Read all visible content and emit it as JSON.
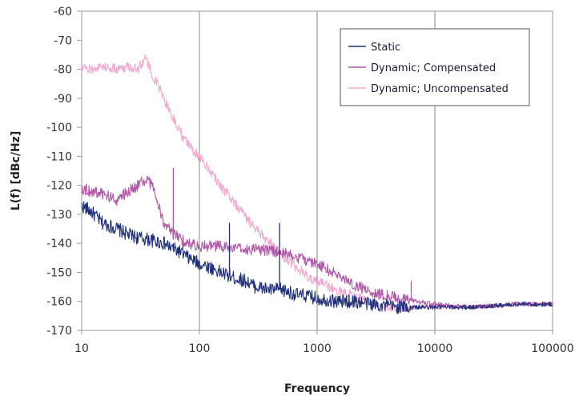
{
  "chart_data": {
    "type": "line",
    "xlabel": "Frequency",
    "ylabel": "L(f) [dBc/Hz]",
    "x_scale": "log",
    "xlim": [
      10,
      100000
    ],
    "ylim": [
      -170,
      -60
    ],
    "x_ticks": [
      10,
      100,
      1000,
      10000,
      100000
    ],
    "x_tick_labels": [
      "10",
      "100",
      "1000",
      "10000",
      "100000"
    ],
    "y_ticks": [
      -60,
      -70,
      -80,
      -90,
      -100,
      -110,
      -120,
      -130,
      -140,
      -150,
      -160,
      -170
    ],
    "y_tick_labels": [
      "-60",
      "-70",
      "-80",
      "-90",
      "-100",
      "-110",
      "-120",
      "-130",
      "-140",
      "-150",
      "-160",
      "-170"
    ],
    "grid": {
      "x_major": true,
      "y_major": false
    },
    "legend": {
      "position": "top-right",
      "entries": [
        "Static",
        "Dynamic; Compensated",
        "Dynamic; Uncompensated"
      ]
    },
    "series": [
      {
        "name": "Static",
        "color": "#1f2f7a",
        "x": [
          10,
          12,
          15,
          20,
          25,
          30,
          40,
          50,
          60,
          70,
          80,
          100,
          120,
          150,
          200,
          250,
          300,
          400,
          500,
          600,
          700,
          800,
          1000,
          1500,
          2000,
          3000,
          5000,
          7000,
          10000,
          20000,
          50000,
          100000
        ],
        "y": [
          -127,
          -129,
          -133,
          -135,
          -137,
          -138,
          -139,
          -140,
          -142,
          -143,
          -145,
          -147,
          -148,
          -150,
          -152,
          -153,
          -155,
          -156,
          -156,
          -157,
          -158,
          -158,
          -159,
          -160,
          -160,
          -161,
          -162,
          -162,
          -162,
          -162,
          -161,
          -161
        ],
        "spikes": [
          [
            60,
            -140
          ],
          [
            180,
            -133
          ],
          [
            480,
            -133
          ]
        ]
      },
      {
        "name": "Dynamic; Compensated",
        "color": "#b05aa8",
        "x": [
          10,
          12,
          15,
          20,
          25,
          30,
          35,
          40,
          45,
          50,
          60,
          80,
          100,
          150,
          200,
          300,
          500,
          700,
          1000,
          1500,
          2000,
          3000,
          5000,
          7000,
          10000,
          20000,
          50000,
          100000
        ],
        "y": [
          -121,
          -122,
          -123,
          -125,
          -122,
          -120,
          -118,
          -120,
          -127,
          -133,
          -137,
          -140,
          -141,
          -141,
          -142,
          -142,
          -143,
          -145,
          -147,
          -151,
          -154,
          -157,
          -159,
          -160,
          -161,
          -162,
          -161,
          -161
        ],
        "spikes": [
          [
            60,
            -114
          ],
          [
            6300,
            -153
          ]
        ]
      },
      {
        "name": "Dynamic; Uncompensated",
        "color": "#f2a9cf",
        "x": [
          10,
          12,
          15,
          20,
          25,
          30,
          35,
          40,
          50,
          60,
          70,
          80,
          100,
          120,
          150,
          200,
          250,
          300,
          400,
          500,
          600,
          700,
          800,
          1000,
          1500,
          2000,
          3000,
          4000,
          5000,
          7000,
          10000,
          20000,
          50000,
          100000
        ],
        "y": [
          -80,
          -80,
          -79,
          -80,
          -79,
          -80,
          -76,
          -82,
          -90,
          -97,
          -102,
          -106,
          -110,
          -114,
          -120,
          -126,
          -131,
          -135,
          -140,
          -144,
          -147,
          -149,
          -151,
          -153,
          -156,
          -158,
          -161,
          -162,
          -162,
          -162,
          -162,
          -162,
          -161,
          -161
        ]
      }
    ]
  }
}
